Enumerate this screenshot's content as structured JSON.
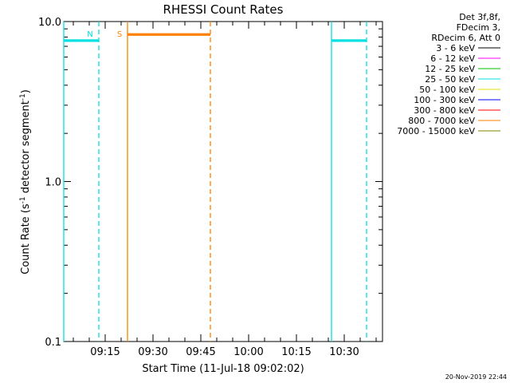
{
  "chart_data": {
    "type": "line",
    "title": "RHESSI Count Rates",
    "xlabel": "Start Time (11-Jul-18 09:02:02)",
    "ylabel_parts": {
      "pre": "Count Rate (s",
      "sup1": "-1",
      "mid": " detector segment",
      "sup2": "-1",
      "post": ")"
    },
    "yscale": "log",
    "ylim": [
      0.1,
      10.0
    ],
    "yticks": [
      {
        "value": 10.0,
        "label": "10.0"
      },
      {
        "value": 1.0,
        "label": "1.0"
      },
      {
        "value": 0.1,
        "label": "0.1"
      }
    ],
    "xlim": [
      "09:02",
      "10:42"
    ],
    "xticks": [
      "09:15",
      "09:30",
      "09:45",
      "10:00",
      "10:15",
      "10:30"
    ],
    "info_lines": [
      "Det 3f,8f,",
      "FDecim 3,",
      "RDecim 6, Att 0"
    ],
    "legend": [
      {
        "label": "3 - 6 keV",
        "color": "#000000"
      },
      {
        "label": "6 - 12 keV",
        "color": "#ff00ff"
      },
      {
        "label": "12 - 25 keV",
        "color": "#00c000"
      },
      {
        "label": "25 - 50 keV",
        "color": "#00e0e0"
      },
      {
        "label": "50 - 100 keV",
        "color": "#e0e000"
      },
      {
        "label": "100 - 300 keV",
        "color": "#0000ff"
      },
      {
        "label": "300 - 800 keV",
        "color": "#ff0000"
      },
      {
        "label": "800 - 7000 keV",
        "color": "#ff8000"
      },
      {
        "label": "7000 - 15000 keV",
        "color": "#808000"
      }
    ],
    "series": [
      {
        "color": "#00e0e0",
        "segments": [
          {
            "x": [
              "09:02",
              "09:13"
            ],
            "y": [
              7.6,
              7.6
            ]
          },
          {
            "x": [
              "10:26",
              "10:37"
            ],
            "y": [
              7.6,
              7.6
            ]
          }
        ]
      },
      {
        "color": "#ff8000",
        "segments": [
          {
            "x": [
              "09:22",
              "09:48"
            ],
            "y": [
              8.3,
              8.3
            ]
          }
        ]
      }
    ],
    "annotations": [
      {
        "text": "N",
        "color": "#00e0e0",
        "solid_x": "09:02",
        "dashed_x": "09:13"
      },
      {
        "text": "S",
        "color": "#ff8000",
        "solid_x": "09:22",
        "dashed_x": "09:48"
      },
      {
        "text": "",
        "color": "#00e0e0",
        "solid_x": "10:26",
        "dashed_x": "10:37"
      }
    ]
  },
  "footer_date": "20-Nov-2019 22:44"
}
